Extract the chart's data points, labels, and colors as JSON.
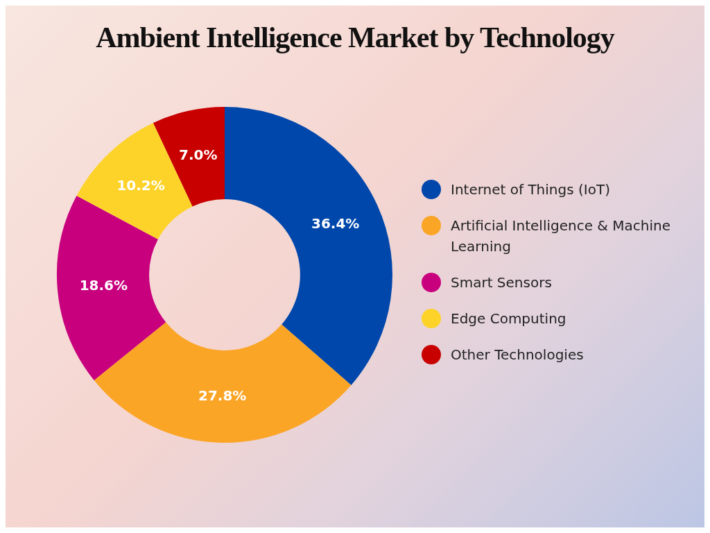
{
  "chart_data": {
    "type": "donut",
    "title": "Ambient Intelligence Market by Technology",
    "categories": [
      "Internet of Things (IoT)",
      "Artificial Intelligence & Machine Learning",
      "Smart Sensors",
      "Edge Computing",
      "Other Technologies"
    ],
    "values": [
      36.4,
      27.8,
      18.6,
      10.2,
      7.0
    ],
    "colors": [
      "#0047ab",
      "#fba526",
      "#c8007e",
      "#fdd32a",
      "#c80000"
    ],
    "value_labels": [
      "36.4%",
      "27.8%",
      "18.6%",
      "10.2%",
      "7.0%"
    ],
    "legend": "right"
  }
}
